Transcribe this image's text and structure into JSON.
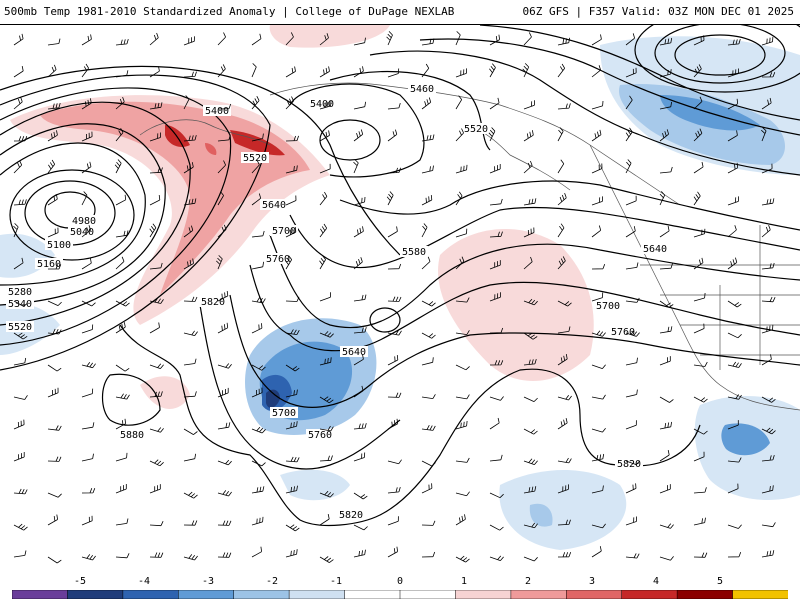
{
  "header": {
    "title": "500mb Temp 1981-2010 Standardized Anomaly | College of DuPage NEXLAB",
    "run_info": "06Z GFS | F357 Valid: 03Z MON DEC 01 2025"
  },
  "contour_labels": [
    {
      "id": "l5400a",
      "text": "5400"
    },
    {
      "id": "l5400b",
      "text": "5400"
    },
    {
      "id": "l5460",
      "text": "5460"
    },
    {
      "id": "l5520a",
      "text": "5520"
    },
    {
      "id": "l5520b",
      "text": "5520"
    },
    {
      "id": "l4980",
      "text": "4980"
    },
    {
      "id": "l5040",
      "text": "5040"
    },
    {
      "id": "l5100",
      "text": "5100"
    },
    {
      "id": "l5160",
      "text": "5160"
    },
    {
      "id": "l5280",
      "text": "5280"
    },
    {
      "id": "l5340",
      "text": "5340"
    },
    {
      "id": "l5520c",
      "text": "5520"
    },
    {
      "id": "l5640a",
      "text": "5640"
    },
    {
      "id": "l5700a",
      "text": "5700"
    },
    {
      "id": "l5760a",
      "text": "5760"
    },
    {
      "id": "l5580",
      "text": "5580"
    },
    {
      "id": "l5820a",
      "text": "5820"
    },
    {
      "id": "l5640b",
      "text": "5640"
    },
    {
      "id": "l5700b",
      "text": "5700"
    },
    {
      "id": "l5760b",
      "text": "5760"
    },
    {
      "id": "l5640c",
      "text": "5640"
    },
    {
      "id": "l5700c",
      "text": "5700"
    },
    {
      "id": "l5760c",
      "text": "5760"
    },
    {
      "id": "l5880",
      "text": "5880"
    },
    {
      "id": "l5820b",
      "text": "5820"
    },
    {
      "id": "l5820c",
      "text": "5820"
    }
  ],
  "legend": {
    "ticks": [
      "-5",
      "-4",
      "-3",
      "-2",
      "-1",
      "0",
      "1",
      "2",
      "3",
      "4",
      "5"
    ],
    "colors": [
      "#6a3d9a",
      "#1f3c7a",
      "#2e63b0",
      "#5f9bd6",
      "#9cc3e6",
      "#cfe0f1",
      "#ffffff",
      "#ffffff",
      "#f7d3d3",
      "#ef9a9a",
      "#e06666",
      "#c62828",
      "#8b0000",
      "#f2c200"
    ]
  },
  "colors": {
    "neg1": "#d6e6f5",
    "neg2": "#a7c9ea",
    "neg3": "#5f9bd6",
    "neg4": "#2e63b0",
    "neg5": "#1f3c7a",
    "pos1": "#f8dada",
    "pos2": "#efa3a3",
    "pos3": "#e06060",
    "pos4": "#c62828",
    "pos5": "#8b0000"
  }
}
